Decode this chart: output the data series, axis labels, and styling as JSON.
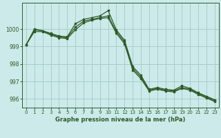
{
  "title": "Graphe pression niveau de la mer (hPa)",
  "background_color": "#cceaea",
  "grid_color": "#aacccc",
  "line_color": "#2d5a27",
  "xlim": [
    -0.5,
    23.5
  ],
  "ylim": [
    995.5,
    1001.5
  ],
  "yticks": [
    996,
    997,
    998,
    999,
    1000
  ],
  "xticks": [
    0,
    1,
    2,
    3,
    4,
    5,
    6,
    7,
    8,
    9,
    10,
    11,
    12,
    13,
    14,
    15,
    16,
    17,
    18,
    19,
    20,
    21,
    22,
    23
  ],
  "series_high": [
    999.1,
    1000.0,
    999.9,
    999.75,
    999.6,
    999.55,
    1000.3,
    1000.55,
    1000.65,
    1000.75,
    1001.05,
    999.95,
    999.35,
    997.85,
    997.35,
    996.55,
    996.65,
    996.55,
    996.5,
    996.75,
    996.6,
    996.35,
    996.15,
    995.95
  ],
  "series_mid": [
    999.1,
    999.95,
    999.9,
    999.7,
    999.55,
    999.5,
    1000.1,
    1000.45,
    1000.55,
    1000.65,
    1000.75,
    999.85,
    999.25,
    997.75,
    997.25,
    996.5,
    996.6,
    996.5,
    996.45,
    996.65,
    996.55,
    996.3,
    996.1,
    995.9
  ],
  "series_low": [
    999.1,
    999.85,
    999.85,
    999.65,
    999.5,
    999.45,
    999.95,
    1000.35,
    1000.5,
    1000.6,
    1000.65,
    999.75,
    999.15,
    997.65,
    997.15,
    996.45,
    996.55,
    996.45,
    996.4,
    996.6,
    996.5,
    996.25,
    996.05,
    995.85
  ]
}
